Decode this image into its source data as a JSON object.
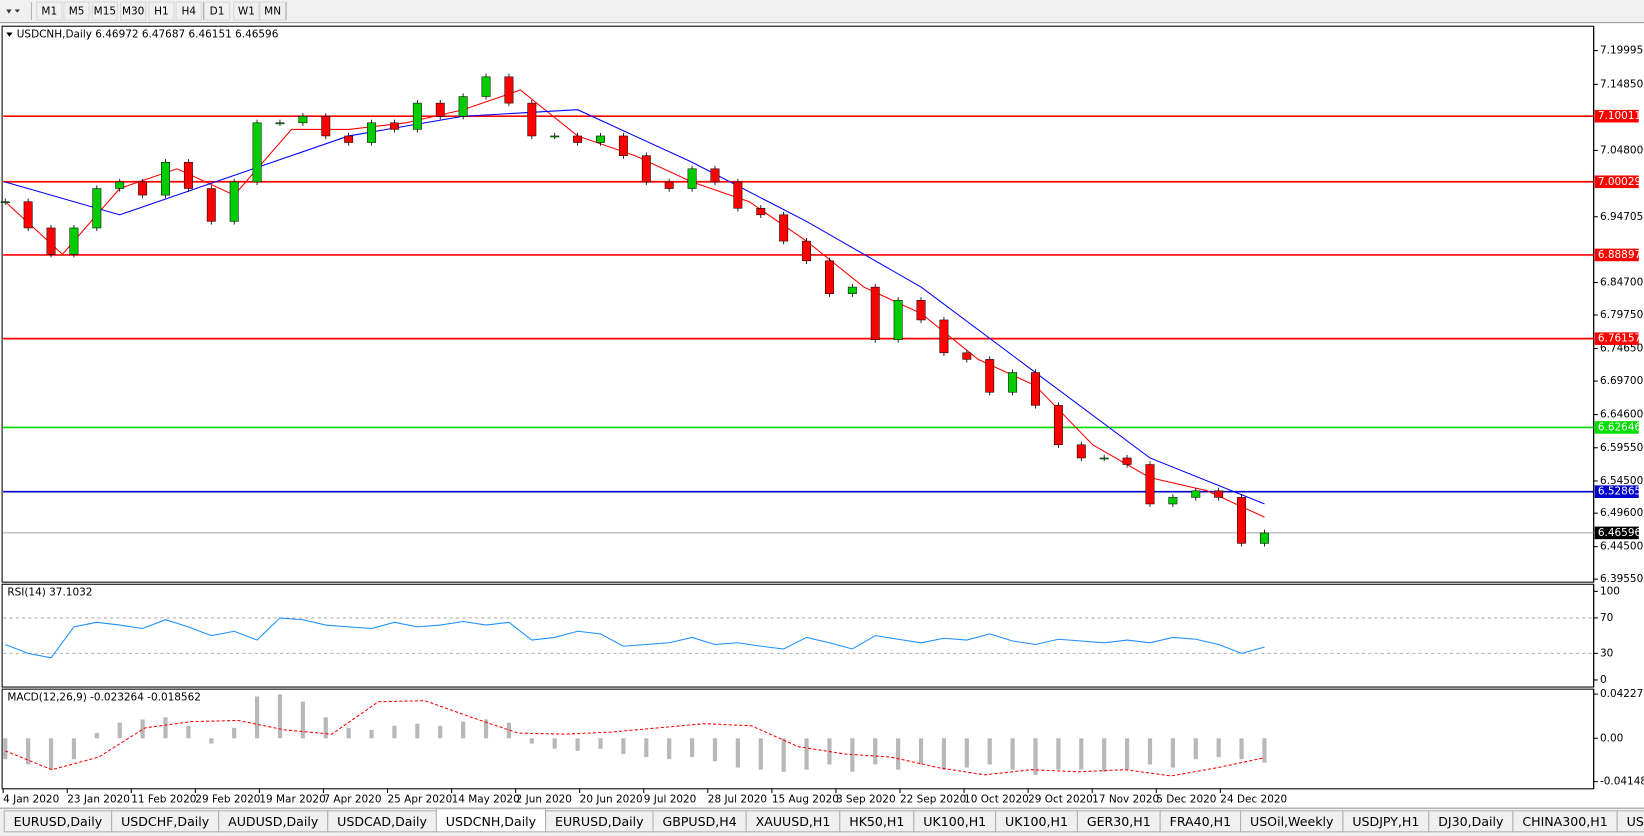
{
  "toolbar": {
    "timeframes": [
      "M1",
      "M5",
      "M15",
      "M30",
      "H1",
      "H4",
      "D1",
      "W1",
      "MN"
    ]
  },
  "chart_data": [
    {
      "type": "candlestick",
      "title": "USDCNH,Daily 6.46972 6.47687 6.46151 6.46596",
      "x_labels": [
        "4 Jan 2020",
        "23 Jan 2020",
        "11 Feb 2020",
        "29 Feb 2020",
        "19 Mar 2020",
        "7 Apr 2020",
        "25 Apr 2020",
        "14 May 2020",
        "2 Jun 2020",
        "20 Jun 2020",
        "9 Jul 2020",
        "28 Jul 2020",
        "15 Aug 2020",
        "3 Sep 2020",
        "22 Sep 2020",
        "10 Oct 2020",
        "29 Oct 2020",
        "17 Nov 2020",
        "5 Dec 2020",
        "24 Dec 2020"
      ],
      "up_color": "#00cc00",
      "down_color": "#ff0000",
      "values": [
        6.97,
        6.93,
        6.89,
        6.93,
        6.99,
        7.0,
        6.98,
        7.03,
        6.99,
        6.94,
        7.0,
        7.09,
        7.09,
        7.1,
        7.07,
        7.06,
        7.09,
        7.08,
        7.12,
        7.1,
        7.13,
        7.16,
        7.12,
        7.07,
        7.07,
        7.06,
        7.07,
        7.04,
        7.0,
        6.99,
        7.02,
        7.0,
        6.96,
        6.95,
        6.91,
        6.88,
        6.83,
        6.84,
        6.76,
        6.82,
        6.79,
        6.74,
        6.73,
        6.68,
        6.71,
        6.66,
        6.6,
        6.58,
        6.58,
        6.57,
        6.51,
        6.52,
        6.53,
        6.52,
        6.45,
        6.46596
      ],
      "overlays": [
        {
          "color": "#ff0000",
          "values": [
            6.97,
            6.89,
            6.99,
            7.02,
            6.98,
            7.08,
            7.08,
            7.09,
            7.11,
            7.14,
            7.07,
            7.04,
            7.0,
            6.97,
            6.91,
            6.84,
            6.8,
            6.73,
            6.69,
            6.6,
            6.55,
            6.53,
            6.49
          ]
        },
        {
          "color": "#0000ff",
          "values": [
            7.0,
            6.95,
            7.01,
            7.07,
            7.1,
            7.11,
            7.03,
            6.94,
            6.84,
            6.71,
            6.58,
            6.51
          ]
        }
      ],
      "levels": [
        {
          "value": 7.10011,
          "color": "#ff0000"
        },
        {
          "value": 7.00029,
          "color": "#ff0000"
        },
        {
          "value": 6.88897,
          "color": "#ff0000"
        },
        {
          "value": 6.76157,
          "color": "#ff0000"
        },
        {
          "value": 6.62646,
          "color": "#00dd00"
        },
        {
          "value": 6.52865,
          "color": "#0000cc"
        }
      ],
      "last": {
        "value": 6.46596,
        "color": "#000000"
      },
      "ylim": [
        6.391,
        7.237
      ],
      "yticks": [
        {
          "value": 7.19995,
          "label": "7.19995"
        },
        {
          "value": 7.1485,
          "label": "7.14850"
        },
        {
          "value": 7.048,
          "label": "7.04800"
        },
        {
          "value": 6.94705,
          "label": "6.94705"
        },
        {
          "value": 6.847,
          "label": "6.84700"
        },
        {
          "value": 6.7975,
          "label": "6.79750"
        },
        {
          "value": 6.7465,
          "label": "6.74650"
        },
        {
          "value": 6.697,
          "label": "6.69700"
        },
        {
          "value": 6.646,
          "label": "6.64600"
        },
        {
          "value": 6.5955,
          "label": "6.59550"
        },
        {
          "value": 6.545,
          "label": "6.54500"
        },
        {
          "value": 6.496,
          "label": "6.49600"
        },
        {
          "value": 6.445,
          "label": "6.44500"
        },
        {
          "value": 6.3955,
          "label": "6.39550"
        }
      ]
    },
    {
      "type": "line",
      "title": "RSI(14) 37.1032",
      "color": "#1e90ff",
      "values": [
        40,
        30,
        25,
        60,
        65,
        62,
        58,
        68,
        60,
        50,
        55,
        45,
        70,
        68,
        62,
        60,
        58,
        65,
        60,
        62,
        66,
        62,
        65,
        45,
        48,
        55,
        52,
        38,
        40,
        42,
        48,
        40,
        42,
        38,
        35,
        48,
        42,
        35,
        50,
        46,
        42,
        47,
        45,
        52,
        44,
        40,
        46,
        44,
        42,
        45,
        42,
        48,
        46,
        40,
        30,
        37.1032
      ],
      "levels": [
        70,
        30
      ],
      "ylim": [
        -8,
        108
      ],
      "yticks": [
        100,
        70,
        30,
        0
      ]
    },
    {
      "type": "macd",
      "title": "MACD(12,26,9) -0.023264 -0.018562",
      "histogram": {
        "color": "#b8b8b8",
        "values": [
          -0.02,
          -0.025,
          -0.03,
          -0.02,
          0.005,
          0.015,
          0.018,
          0.02,
          0.012,
          -0.005,
          0.01,
          0.04,
          0.042,
          0.035,
          0.02,
          0.01,
          0.008,
          0.012,
          0.014,
          0.012,
          0.016,
          0.018,
          0.015,
          -0.005,
          -0.01,
          -0.012,
          -0.01,
          -0.015,
          -0.018,
          -0.02,
          -0.018,
          -0.022,
          -0.028,
          -0.03,
          -0.032,
          -0.03,
          -0.025,
          -0.032,
          -0.025,
          -0.03,
          -0.025,
          -0.03,
          -0.028,
          -0.025,
          -0.03,
          -0.035,
          -0.03,
          -0.03,
          -0.032,
          -0.03,
          -0.025,
          -0.028,
          -0.02,
          -0.018,
          -0.02,
          -0.023264
        ]
      },
      "signal": {
        "color": "#ff0000",
        "values": [
          -0.012,
          -0.03,
          -0.018,
          0.01,
          0.016,
          0.017,
          0.008,
          0.004,
          0.035,
          0.036,
          0.02,
          0.005,
          0.004,
          0.006,
          0.01,
          0.014,
          0.012,
          -0.008,
          -0.015,
          -0.018,
          -0.028,
          -0.035,
          -0.03,
          -0.032,
          -0.03,
          -0.036,
          -0.028,
          -0.018562
        ]
      },
      "ylim": [
        -0.0483,
        0.047
      ],
      "yticks": [
        0.042275,
        {
          "value": 0,
          "label": "0.00"
        },
        -0.04148
      ]
    }
  ],
  "tabs": {
    "items": [
      "EURUSD,Daily",
      "USDCHF,Daily",
      "AUDUSD,Daily",
      "USDCAD,Daily",
      "USDCNH,Daily",
      "EURUSD,Daily",
      "GBPUSD,H4",
      "XAUUSD,H1",
      "HK50,H1",
      "UK100,H1",
      "UK100,H1",
      "GER30,H1",
      "FRA40,H1",
      "USOil,Weekly",
      "USDJPY,H1",
      "DJ30,Daily",
      "CHINA300,H1",
      "USOil,"
    ],
    "active": 4
  }
}
